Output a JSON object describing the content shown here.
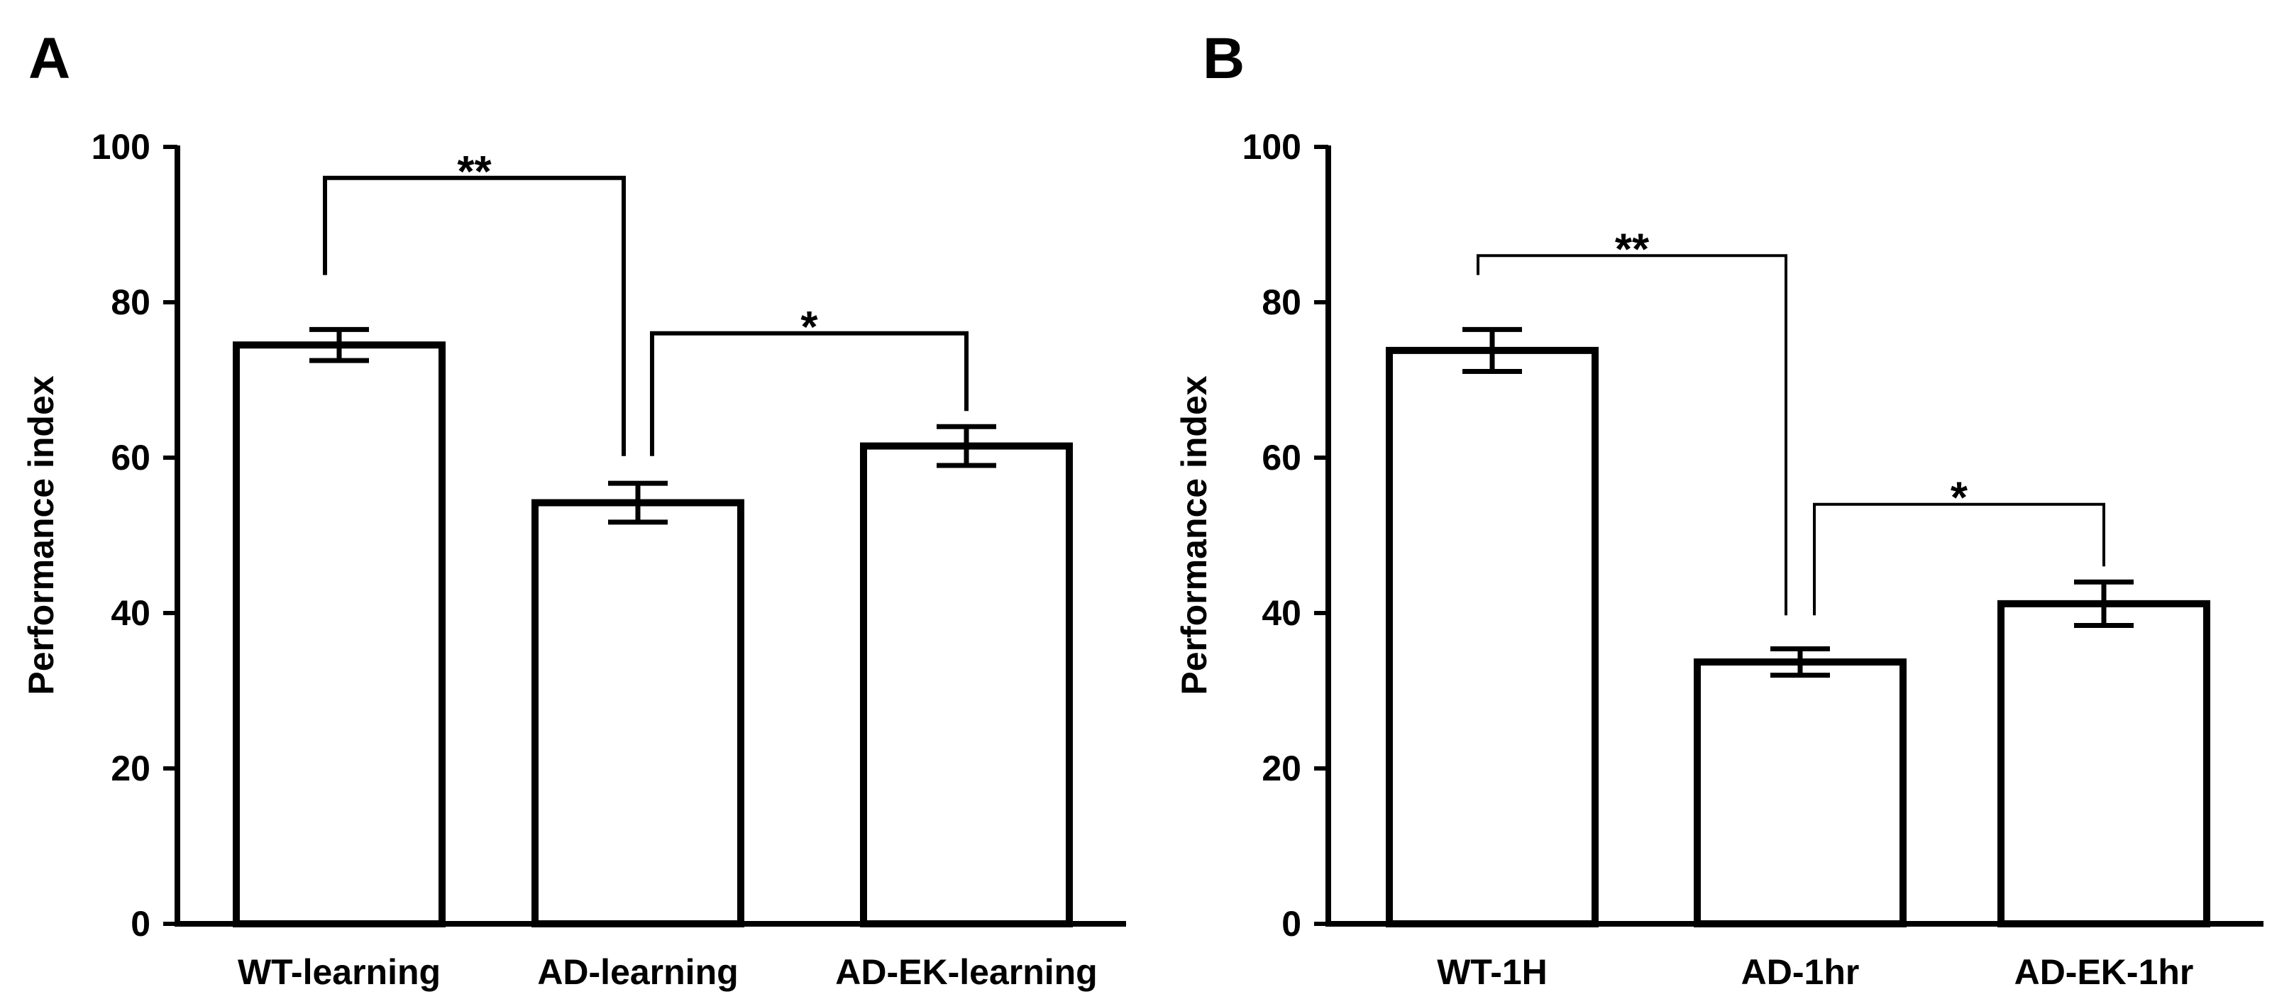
{
  "chart_data": [
    {
      "type": "bar",
      "panel_label": "A",
      "categories": [
        "WT-learning",
        "AD-learning",
        "AD-EK-learning"
      ],
      "values": [
        74.5,
        54.2,
        61.5
      ],
      "errors": [
        2.0,
        2.5,
        2.5
      ],
      "ylabel": "Performance index",
      "xlabel": "",
      "ylim": [
        0,
        100
      ],
      "yticks": [
        0,
        20,
        40,
        60,
        80,
        100
      ],
      "significance": [
        {
          "from": 0,
          "to": 1,
          "label": "**",
          "bracket_y": 96
        },
        {
          "from": 1,
          "to": 2,
          "label": "*",
          "bracket_y": 76
        }
      ]
    },
    {
      "type": "bar",
      "panel_label": "B",
      "categories": [
        "WT-1H",
        "AD-1hr",
        "AD-EK-1hr"
      ],
      "values": [
        73.8,
        33.7,
        41.2
      ],
      "errors": [
        2.7,
        1.7,
        2.8
      ],
      "ylabel": "Performance index",
      "xlabel": "",
      "ylim": [
        0,
        100
      ],
      "yticks": [
        0,
        20,
        40,
        60,
        80,
        100
      ],
      "significance": [
        {
          "from": 0,
          "to": 1,
          "label": "**",
          "bracket_y": 86
        },
        {
          "from": 1,
          "to": 2,
          "label": "*",
          "bracket_y": 54
        }
      ]
    }
  ]
}
